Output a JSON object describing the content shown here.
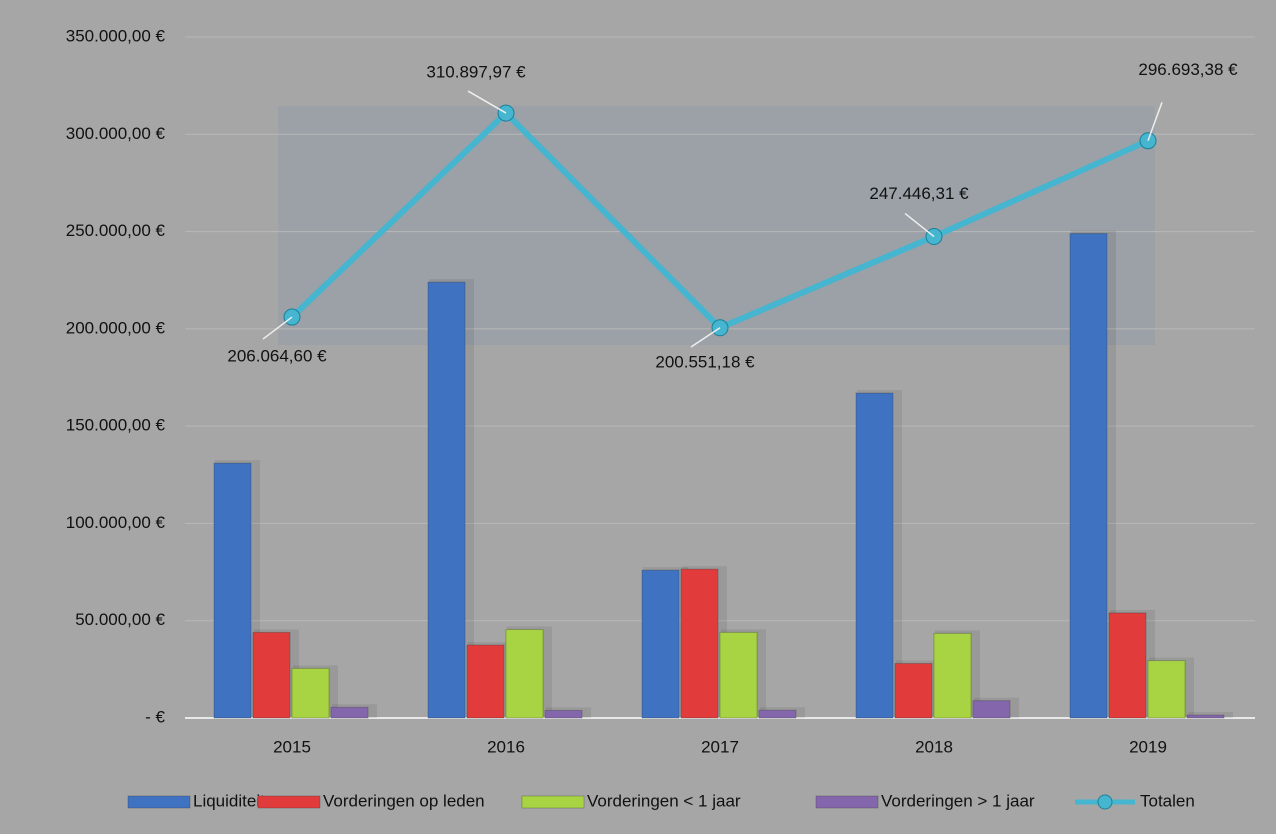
{
  "chart_data": {
    "type": "bar",
    "categories": [
      "2015",
      "2016",
      "2017",
      "2018",
      "2019"
    ],
    "series": [
      {
        "name": "Liquiditeiten",
        "color": "#3f72c1",
        "values": [
          131000,
          224000,
          76000,
          167000,
          249000
        ]
      },
      {
        "name": "Vorderingen op leden",
        "color": "#e23b3b",
        "values": [
          44000,
          37500,
          76500,
          28000,
          54000
        ]
      },
      {
        "name": "Vorderingen < 1 jaar",
        "color": "#a8d444",
        "values": [
          25500,
          45500,
          44000,
          43500,
          29500
        ]
      },
      {
        "name": "Vorderingen > 1 jaar",
        "color": "#8466ad",
        "values": [
          5500,
          3900,
          4000,
          8900,
          1500
        ]
      },
      {
        "name": "Totalen",
        "type": "line",
        "color": "#45b5d0",
        "values": [
          206064.6,
          310897.97,
          200551.18,
          247446.31,
          296693.38
        ],
        "value_labels": [
          "206.064,60 €",
          "310.897,97 €",
          "200.551,18 €",
          "247.446,31 €",
          "296.693,38 €"
        ]
      }
    ],
    "ylim": [
      0,
      350000
    ],
    "yticks": [
      {
        "value": 0,
        "label": "-  €"
      },
      {
        "value": 50000,
        "label": "50.000,00 €"
      },
      {
        "value": 100000,
        "label": "100.000,00 €"
      },
      {
        "value": 150000,
        "label": "150.000,00 €"
      },
      {
        "value": 200000,
        "label": "200.000,00 €"
      },
      {
        "value": 250000,
        "label": "250.000,00 €"
      },
      {
        "value": 300000,
        "label": "300.000,00 €"
      },
      {
        "value": 350000,
        "label": "350.000,00 €"
      }
    ],
    "grid": true,
    "legend": "bottom"
  }
}
